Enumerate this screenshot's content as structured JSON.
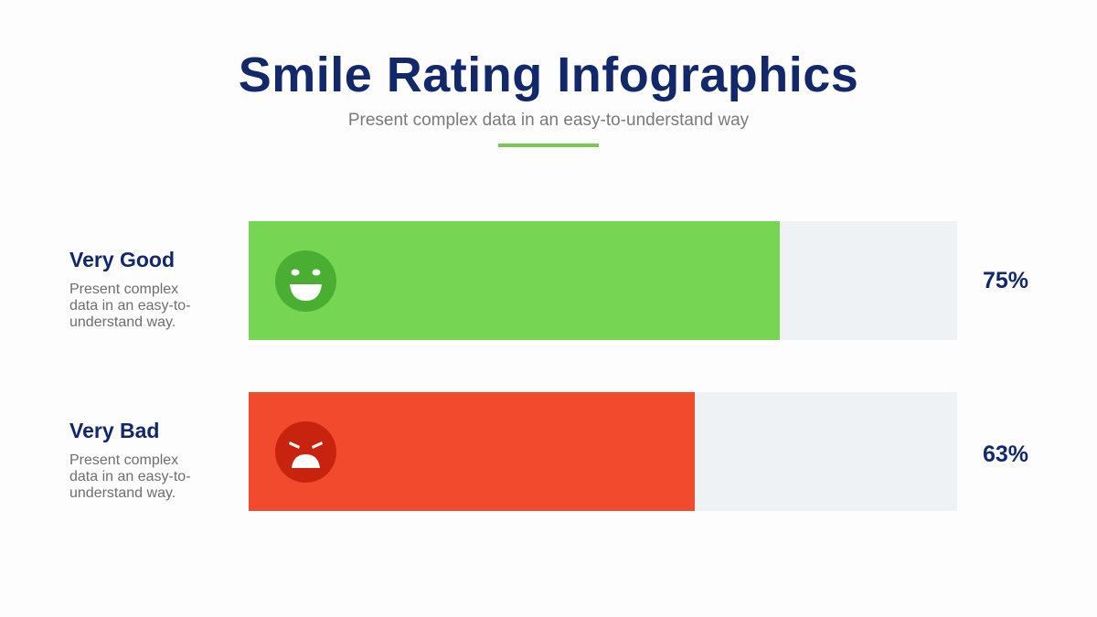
{
  "header": {
    "title": "Smile Rating Infographics",
    "subtitle": "Present complex data in an easy-to-understand way",
    "accent_color": "#7ac94f"
  },
  "chart_data": {
    "type": "bar",
    "orientation": "horizontal",
    "xlim": [
      0,
      100
    ],
    "categories": [
      "Very Good",
      "Very Bad"
    ],
    "values": [
      75,
      63
    ],
    "bars": [
      {
        "label": "Very Good",
        "description": "Present complex data in an easy-to-understand way.",
        "value": 75,
        "value_label": "75%",
        "icon": "smiling-face-icon",
        "color": "#76d654",
        "face_color": "#4aae33"
      },
      {
        "label": "Very Bad",
        "description": "Present complex data in an easy-to-understand way.",
        "value": 63,
        "value_label": "63%",
        "icon": "sad-face-icon",
        "color": "#f24a2c",
        "face_color": "#c8230f"
      }
    ],
    "track_color": "#eff2f5",
    "grid": false,
    "legend": "none"
  }
}
